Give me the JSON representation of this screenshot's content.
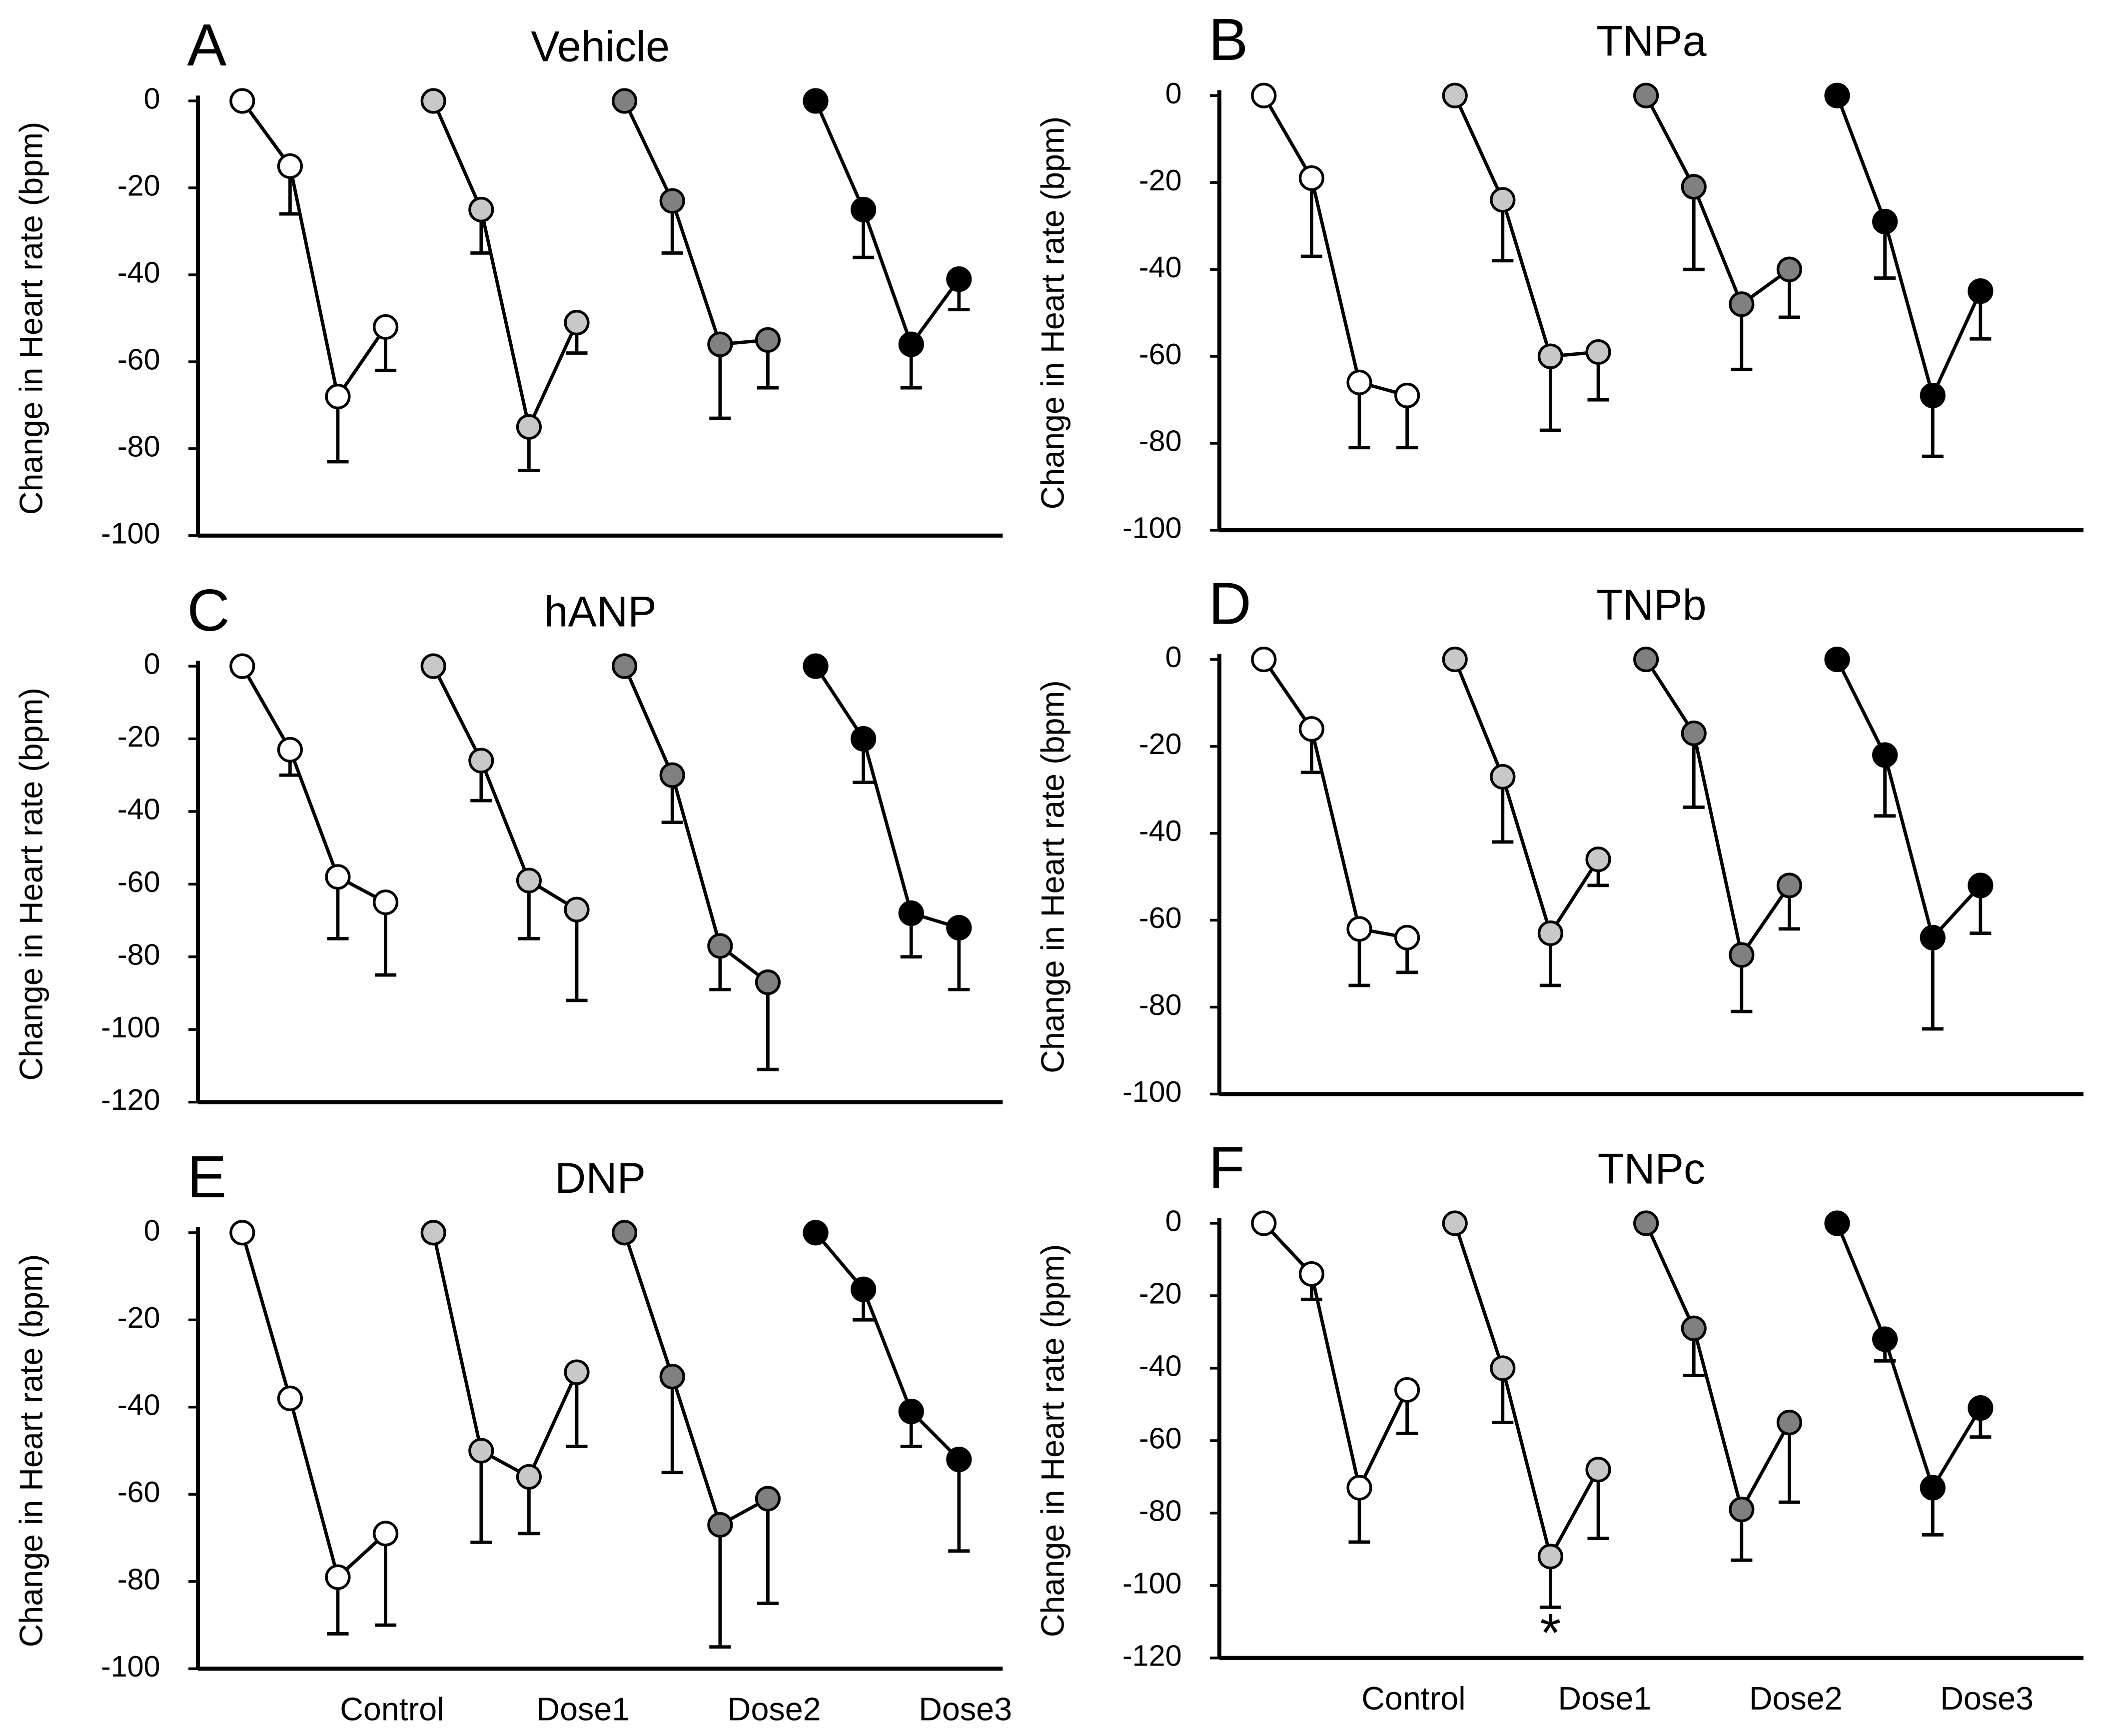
{
  "chart_data": [
    {
      "type": "line",
      "panel": "A",
      "title": "Vehicle",
      "y_label": "Change in Heart rate (bpm)",
      "ylim": [
        -100,
        0
      ],
      "yticks": [
        0,
        -20,
        -40,
        -60,
        -80,
        -100
      ],
      "series": [
        {
          "color": "#ffffff",
          "values": [
            0,
            -15,
            -68,
            -52
          ],
          "errors": [
            0,
            11,
            15,
            10
          ]
        },
        {
          "color": "#c8c8c8",
          "values": [
            0,
            -25,
            -75,
            -51
          ],
          "errors": [
            0,
            10,
            10,
            7
          ]
        },
        {
          "color": "#808080",
          "values": [
            0,
            -23,
            -56,
            -55
          ],
          "errors": [
            0,
            12,
            17,
            11
          ]
        },
        {
          "color": "#000000",
          "values": [
            0,
            -25,
            -56,
            -41
          ],
          "errors": [
            0,
            11,
            10,
            7
          ]
        }
      ]
    },
    {
      "type": "line",
      "panel": "B",
      "title": "TNPa",
      "y_label": "Change in Heart rate (bpm)",
      "ylim": [
        -100,
        0
      ],
      "yticks": [
        0,
        -20,
        -40,
        -60,
        -80,
        -100
      ],
      "series": [
        {
          "color": "#ffffff",
          "values": [
            0,
            -19,
            -66,
            -69
          ],
          "errors": [
            0,
            18,
            15,
            12
          ]
        },
        {
          "color": "#c8c8c8",
          "values": [
            0,
            -24,
            -60,
            -59
          ],
          "errors": [
            0,
            14,
            17,
            11
          ]
        },
        {
          "color": "#808080",
          "values": [
            0,
            -21,
            -48,
            -40
          ],
          "errors": [
            0,
            19,
            15,
            11
          ]
        },
        {
          "color": "#000000",
          "values": [
            0,
            -29,
            -69,
            -45
          ],
          "errors": [
            0,
            13,
            14,
            11
          ]
        }
      ]
    },
    {
      "type": "line",
      "panel": "C",
      "title": "hANP",
      "y_label": "Change in Heart rate (bpm)",
      "ylim": [
        -120,
        0
      ],
      "yticks": [
        0,
        -20,
        -40,
        -60,
        -80,
        -100,
        -120
      ],
      "series": [
        {
          "color": "#ffffff",
          "values": [
            0,
            -23,
            -58,
            -65
          ],
          "errors": [
            0,
            7,
            17,
            20
          ]
        },
        {
          "color": "#c8c8c8",
          "values": [
            0,
            -26,
            -59,
            -67
          ],
          "errors": [
            0,
            11,
            16,
            25
          ]
        },
        {
          "color": "#808080",
          "values": [
            0,
            -30,
            -77,
            -87
          ],
          "errors": [
            0,
            13,
            12,
            24
          ]
        },
        {
          "color": "#000000",
          "values": [
            0,
            -20,
            -68,
            -72
          ],
          "errors": [
            0,
            12,
            12,
            17
          ]
        }
      ]
    },
    {
      "type": "line",
      "panel": "D",
      "title": "TNPb",
      "y_label": "Change in Heart rate (bpm)",
      "ylim": [
        -100,
        0
      ],
      "yticks": [
        0,
        -20,
        -40,
        -60,
        -80,
        -100
      ],
      "series": [
        {
          "color": "#ffffff",
          "values": [
            0,
            -16,
            -62,
            -64
          ],
          "errors": [
            0,
            10,
            13,
            8
          ]
        },
        {
          "color": "#c8c8c8",
          "values": [
            0,
            -27,
            -63,
            -46
          ],
          "errors": [
            0,
            15,
            12,
            6
          ]
        },
        {
          "color": "#808080",
          "values": [
            0,
            -17,
            -68,
            -52
          ],
          "errors": [
            0,
            17,
            13,
            10
          ]
        },
        {
          "color": "#000000",
          "values": [
            0,
            -22,
            -64,
            -52
          ],
          "errors": [
            0,
            14,
            21,
            11
          ]
        }
      ]
    },
    {
      "type": "line",
      "panel": "E",
      "title": "DNP",
      "y_label": "Change in Heart rate (bpm)",
      "ylim": [
        -100,
        0
      ],
      "yticks": [
        0,
        -20,
        -40,
        -60,
        -80,
        -100
      ],
      "x_labels": [
        "Control",
        "Dose1",
        "Dose2",
        "Dose3"
      ],
      "series": [
        {
          "color": "#ffffff",
          "values": [
            0,
            -38,
            -79,
            -69
          ],
          "errors": [
            0,
            0,
            13,
            21
          ]
        },
        {
          "color": "#c8c8c8",
          "values": [
            0,
            -50,
            -56,
            -32
          ],
          "errors": [
            0,
            21,
            13,
            17
          ]
        },
        {
          "color": "#808080",
          "values": [
            0,
            -33,
            -67,
            -61
          ],
          "errors": [
            0,
            22,
            28,
            24
          ]
        },
        {
          "color": "#000000",
          "values": [
            0,
            -13,
            -41,
            -52
          ],
          "errors": [
            0,
            7,
            8,
            21
          ]
        }
      ]
    },
    {
      "type": "line",
      "panel": "F",
      "title": "TNPc",
      "y_label": "Change in Heart rate (bpm)",
      "ylim": [
        -120,
        0
      ],
      "yticks": [
        0,
        -20,
        -40,
        -60,
        -80,
        -100,
        -120
      ],
      "x_labels": [
        "Control",
        "Dose1",
        "Dose2",
        "Dose3"
      ],
      "annotation": "*",
      "series": [
        {
          "color": "#ffffff",
          "values": [
            0,
            -14,
            -73,
            -46
          ],
          "errors": [
            0,
            7,
            15,
            12
          ]
        },
        {
          "color": "#c8c8c8",
          "values": [
            0,
            -40,
            -92,
            -68
          ],
          "errors": [
            0,
            15,
            14,
            19
          ]
        },
        {
          "color": "#808080",
          "values": [
            0,
            -29,
            -79,
            -55
          ],
          "errors": [
            0,
            13,
            14,
            22
          ]
        },
        {
          "color": "#000000",
          "values": [
            0,
            -32,
            -73,
            -51
          ],
          "errors": [
            0,
            6,
            13,
            8
          ]
        }
      ]
    }
  ]
}
